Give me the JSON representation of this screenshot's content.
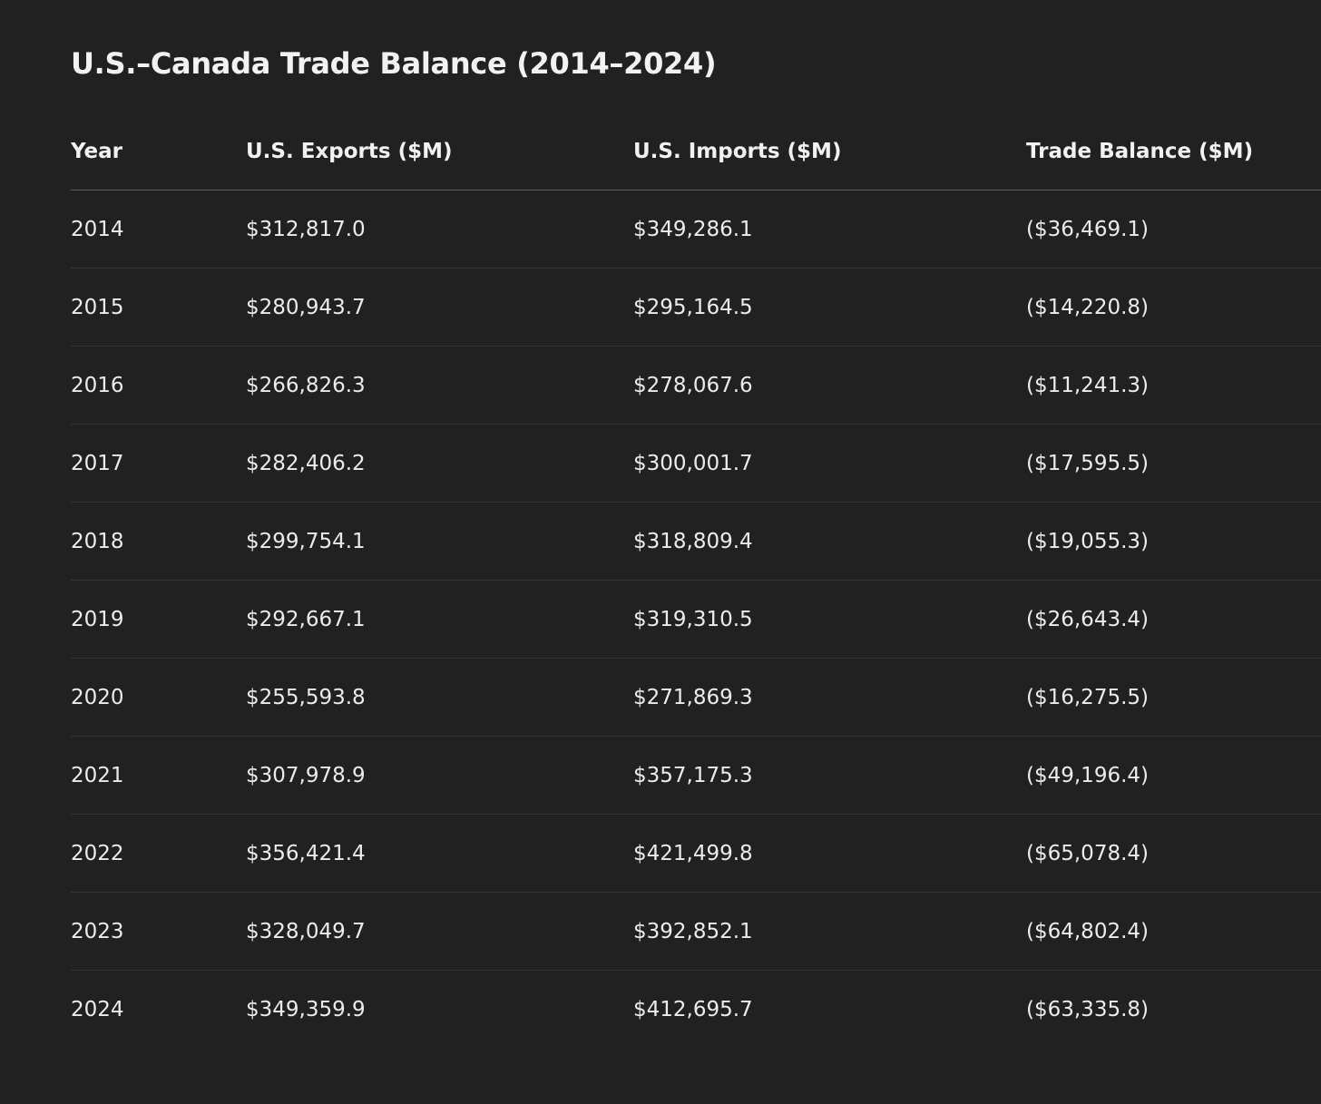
{
  "page": {
    "title": "U.S.–Canada Trade Balance (2014–2024)"
  },
  "table": {
    "headers": [
      "Year",
      "U.S. Exports ($M)",
      "U.S. Imports ($M)",
      "Trade Balance ($M)"
    ],
    "rows": [
      [
        "2014",
        "$312,817.0",
        "$349,286.1",
        "($36,469.1)"
      ],
      [
        "2015",
        "$280,943.7",
        "$295,164.5",
        "($14,220.8)"
      ],
      [
        "2016",
        "$266,826.3",
        "$278,067.6",
        "($11,241.3)"
      ],
      [
        "2017",
        "$282,406.2",
        "$300,001.7",
        "($17,595.5)"
      ],
      [
        "2018",
        "$299,754.1",
        "$318,809.4",
        "($19,055.3)"
      ],
      [
        "2019",
        "$292,667.1",
        "$319,310.5",
        "($26,643.4)"
      ],
      [
        "2020",
        "$255,593.8",
        "$271,869.3",
        "($16,275.5)"
      ],
      [
        "2021",
        "$307,978.9",
        "$357,175.3",
        "($49,196.4)"
      ],
      [
        "2022",
        "$356,421.4",
        "$421,499.8",
        "($65,078.4)"
      ],
      [
        "2023",
        "$328,049.7",
        "$392,852.1",
        "($64,802.4)"
      ],
      [
        "2024",
        "$349,359.9",
        "$412,695.7",
        "($63,335.8)"
      ]
    ]
  },
  "colors": {
    "background": "#212121",
    "text": "#ececec",
    "header_divider": "#5a5a5a",
    "row_divider": "#353535"
  }
}
